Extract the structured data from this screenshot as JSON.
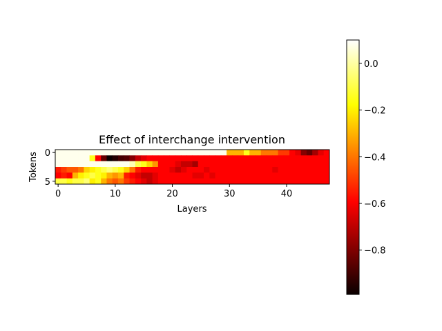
{
  "chart_data": {
    "type": "heatmap",
    "title": "Effect of interchange intervention",
    "xlabel": "Layers",
    "ylabel": "Tokens",
    "n_rows": 6,
    "n_cols": 48,
    "x_ticks": [
      0,
      10,
      20,
      30,
      40
    ],
    "y_ticks": [
      0,
      5
    ],
    "colormap": "hot",
    "vmin": -0.99,
    "vmax": 0.1,
    "colorbar": {
      "ticks": [
        0.0,
        -0.2,
        -0.4,
        -0.6,
        -0.8
      ],
      "tick_labels": [
        "0.0",
        "−0.2",
        "−0.4",
        "−0.6",
        "−0.8"
      ]
    },
    "values": [
      [
        0.08,
        0.08,
        0.08,
        0.08,
        0.08,
        0.08,
        0.08,
        0.08,
        0.08,
        0.08,
        0.08,
        0.08,
        0.08,
        0.08,
        0.08,
        0.08,
        0.08,
        0.08,
        0.08,
        0.08,
        0.08,
        0.08,
        0.08,
        0.08,
        0.08,
        0.08,
        0.08,
        0.08,
        0.08,
        0.08,
        -0.3,
        -0.3,
        -0.3,
        -0.15,
        -0.3,
        -0.3,
        -0.4,
        -0.4,
        -0.4,
        -0.5,
        -0.5,
        -0.6,
        -0.65,
        -0.8,
        -0.85,
        -0.75,
        -0.65,
        -0.6
      ],
      [
        0.08,
        0.08,
        0.08,
        0.08,
        0.08,
        0.08,
        -0.15,
        -0.6,
        -0.85,
        -0.99,
        -0.95,
        -0.9,
        -0.88,
        -0.8,
        -0.7,
        -0.65,
        -0.6,
        -0.6,
        -0.6,
        -0.6,
        -0.6,
        -0.6,
        -0.6,
        -0.6,
        -0.6,
        -0.6,
        -0.6,
        -0.6,
        -0.6,
        -0.6,
        -0.6,
        -0.6,
        -0.6,
        -0.6,
        -0.6,
        -0.6,
        -0.6,
        -0.6,
        -0.6,
        -0.6,
        -0.6,
        -0.6,
        -0.6,
        -0.6,
        -0.6,
        -0.6,
        -0.6,
        -0.6
      ],
      [
        0.08,
        0.08,
        0.08,
        0.08,
        0.08,
        0.08,
        0.08,
        0.08,
        0.08,
        0.08,
        0.08,
        0.08,
        0.08,
        0.02,
        -0.1,
        -0.15,
        -0.25,
        -0.35,
        -0.6,
        -0.6,
        -0.6,
        -0.65,
        -0.7,
        -0.7,
        -0.75,
        -0.6,
        -0.6,
        -0.6,
        -0.6,
        -0.6,
        -0.6,
        -0.6,
        -0.6,
        -0.6,
        -0.6,
        -0.6,
        -0.6,
        -0.6,
        -0.6,
        -0.6,
        -0.6,
        -0.6,
        -0.6,
        -0.6,
        -0.6,
        -0.6,
        -0.6,
        -0.6
      ],
      [
        -0.55,
        -0.5,
        -0.45,
        -0.45,
        -0.4,
        -0.25,
        -0.2,
        -0.15,
        -0.1,
        -0.05,
        -0.1,
        -0.15,
        -0.25,
        -0.4,
        -0.55,
        -0.6,
        -0.6,
        -0.6,
        -0.6,
        -0.6,
        -0.65,
        -0.7,
        -0.65,
        -0.6,
        -0.6,
        -0.6,
        -0.65,
        -0.6,
        -0.6,
        -0.6,
        -0.6,
        -0.6,
        -0.6,
        -0.6,
        -0.6,
        -0.6,
        -0.6,
        -0.6,
        -0.65,
        -0.6,
        -0.6,
        -0.6,
        -0.6,
        -0.6,
        -0.6,
        -0.6,
        -0.6,
        -0.6
      ],
      [
        -0.6,
        -0.55,
        -0.6,
        -0.3,
        -0.2,
        -0.15,
        -0.1,
        -0.15,
        -0.2,
        -0.3,
        -0.35,
        -0.3,
        -0.55,
        -0.6,
        -0.65,
        -0.7,
        -0.7,
        -0.65,
        -0.6,
        -0.6,
        -0.6,
        -0.6,
        -0.6,
        -0.6,
        -0.65,
        -0.65,
        -0.6,
        -0.65,
        -0.6,
        -0.6,
        -0.6,
        -0.6,
        -0.6,
        -0.6,
        -0.6,
        -0.6,
        -0.6,
        -0.6,
        -0.6,
        -0.6,
        -0.6,
        -0.6,
        -0.6,
        -0.6,
        -0.6,
        -0.6,
        -0.6,
        -0.6
      ],
      [
        -0.1,
        -0.1,
        -0.15,
        -0.1,
        -0.1,
        -0.05,
        -0.2,
        -0.15,
        -0.3,
        -0.4,
        -0.45,
        -0.4,
        -0.5,
        -0.55,
        -0.6,
        -0.65,
        -0.7,
        -0.65,
        -0.6,
        -0.6,
        -0.6,
        -0.6,
        -0.6,
        -0.6,
        -0.6,
        -0.6,
        -0.6,
        -0.6,
        -0.6,
        -0.6,
        -0.6,
        -0.6,
        -0.6,
        -0.6,
        -0.6,
        -0.6,
        -0.6,
        -0.6,
        -0.6,
        -0.6,
        -0.6,
        -0.6,
        -0.6,
        -0.6,
        -0.6,
        -0.6,
        -0.6,
        -0.6
      ]
    ]
  }
}
